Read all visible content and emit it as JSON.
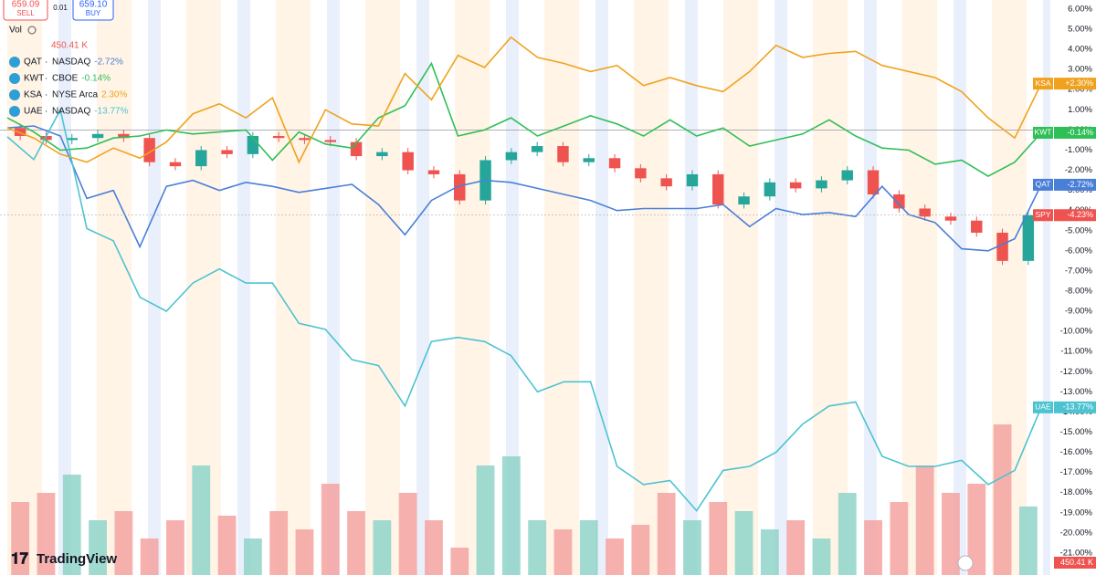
{
  "header": {
    "sell_price": "659.09",
    "sell_label": "SELL",
    "spread": "0.01",
    "buy_price": "659.10",
    "buy_label": "BUY",
    "vol_label": "Vol",
    "vol_value": "450.41 K"
  },
  "brand": "TradingView",
  "chart_data": {
    "type": "candlestick",
    "name": "SPY",
    "tag_label": "-4.23%",
    "up_color": "#26a69a",
    "down_color": "#ef5350",
    "open": [
      0.1,
      -0.3,
      -0.5,
      -0.4,
      -0.2,
      -0.4,
      -1.6,
      -1.8,
      -1.0,
      -1.2,
      -0.3,
      -0.4,
      -0.5,
      -0.6,
      -1.3,
      -1.1,
      -2.0,
      -2.2,
      -3.5,
      -1.5,
      -1.1,
      -0.8,
      -1.6,
      -1.4,
      -1.9,
      -2.4,
      -2.8,
      -2.2,
      -3.7,
      -3.3,
      -2.6,
      -2.9,
      -2.5,
      -2.0,
      -3.2,
      -3.9,
      -4.3,
      -4.5,
      -5.1,
      -6.5
    ],
    "high": [
      0.3,
      -0.1,
      -0.2,
      0.0,
      0.0,
      -0.2,
      -1.4,
      -0.8,
      -0.8,
      -0.1,
      -0.1,
      -0.2,
      -0.3,
      -0.4,
      -0.9,
      -0.9,
      -1.8,
      -2.0,
      -1.3,
      -0.9,
      -0.6,
      -0.6,
      -1.2,
      -1.2,
      -1.7,
      -2.2,
      -2.0,
      -2.0,
      -3.1,
      -2.4,
      -2.4,
      -2.3,
      -1.8,
      -1.8,
      -3.0,
      -3.7,
      -4.1,
      -4.3,
      -4.9,
      -4.0
    ],
    "low": [
      -0.5,
      -0.7,
      -0.7,
      -0.6,
      -0.6,
      -1.8,
      -2.0,
      -2.0,
      -1.4,
      -1.4,
      -0.6,
      -0.7,
      -0.8,
      -1.5,
      -1.5,
      -2.2,
      -2.4,
      -3.7,
      -3.7,
      -1.7,
      -1.3,
      -1.8,
      -1.8,
      -2.1,
      -2.6,
      -3.0,
      -3.0,
      -3.9,
      -3.9,
      -3.5,
      -3.1,
      -3.1,
      -2.7,
      -3.4,
      -4.1,
      -4.5,
      -4.7,
      -5.3,
      -6.7,
      -6.7
    ],
    "close": [
      -0.3,
      -0.5,
      -0.4,
      -0.2,
      -0.4,
      -1.6,
      -1.8,
      -1.0,
      -1.2,
      -0.3,
      -0.4,
      -0.5,
      -0.6,
      -1.3,
      -1.1,
      -2.0,
      -2.2,
      -3.5,
      -1.5,
      -1.1,
      -0.8,
      -1.6,
      -1.4,
      -1.9,
      -2.4,
      -2.8,
      -2.2,
      -3.7,
      -3.3,
      -2.6,
      -2.9,
      -2.5,
      -2.0,
      -3.2,
      -3.9,
      -4.3,
      -4.5,
      -5.1,
      -6.5,
      -4.23
    ],
    "volume": {
      "values": [
        480,
        540,
        660,
        360,
        420,
        240,
        360,
        720,
        390,
        240,
        420,
        300,
        600,
        420,
        360,
        540,
        360,
        180,
        720,
        780,
        360,
        300,
        360,
        240,
        330,
        540,
        360,
        480,
        420,
        300,
        360,
        240,
        540,
        360,
        480,
        720,
        540,
        600,
        990,
        450.41
      ],
      "label": "450.41 K",
      "up_color": "#8fd3c8",
      "down_color": "#f5a3a1"
    },
    "series": [
      {
        "name": "QAT",
        "exchange": "NASDAQ",
        "legend_label": "-2.72%",
        "tag_label": "-2.72%",
        "color": "#4a7fd8",
        "values": [
          0.1,
          0.2,
          -0.3,
          -3.4,
          -3.0,
          -5.8,
          -2.8,
          -2.5,
          -3.0,
          -2.6,
          -2.8,
          -3.1,
          -2.9,
          -2.7,
          -3.7,
          -5.2,
          -3.5,
          -2.8,
          -2.5,
          -2.6,
          -2.9,
          -3.2,
          -3.5,
          -4.0,
          -3.9,
          -3.9,
          -3.9,
          -3.7,
          -4.8,
          -3.9,
          -4.2,
          -4.1,
          -4.3,
          -2.8,
          -4.2,
          -4.6,
          -5.9,
          -6.0,
          -5.4,
          -2.72
        ]
      },
      {
        "name": "KWT",
        "exchange": "CBOE",
        "legend_label": "-0.14%",
        "tag_label": "-0.14%",
        "color": "#2fbf57",
        "values": [
          0.6,
          -0.1,
          -1.0,
          -0.9,
          -0.4,
          -0.3,
          0.0,
          -0.2,
          -0.1,
          0.0,
          -1.5,
          -0.1,
          -0.7,
          -0.9,
          0.6,
          1.2,
          3.3,
          -0.3,
          0.0,
          0.6,
          -0.3,
          0.2,
          0.7,
          0.3,
          -0.3,
          0.5,
          -0.3,
          0.1,
          -0.8,
          -0.5,
          -0.2,
          0.5,
          -0.3,
          -0.9,
          -1.0,
          -1.7,
          -1.5,
          -2.3,
          -1.6,
          -0.14
        ]
      },
      {
        "name": "KSA",
        "exchange": "NYSE Arca",
        "legend_label": "2.30%",
        "tag_label": "+2.30%",
        "color": "#f0a21e",
        "values": [
          0.1,
          -0.4,
          -1.2,
          -1.6,
          -0.9,
          -1.4,
          -0.6,
          0.8,
          1.3,
          0.6,
          1.6,
          -1.6,
          1.0,
          0.3,
          0.2,
          2.8,
          1.5,
          3.7,
          3.1,
          4.6,
          3.6,
          3.3,
          2.9,
          3.2,
          2.2,
          2.6,
          2.2,
          1.9,
          2.9,
          4.2,
          3.6,
          3.8,
          3.9,
          3.2,
          2.9,
          2.6,
          1.9,
          0.6,
          -0.4,
          2.3
        ]
      },
      {
        "name": "UAE",
        "exchange": "NASDAQ",
        "legend_label": "-13.77%",
        "tag_label": "-13.77%",
        "color": "#4cc3d1",
        "values": [
          -0.34,
          -1.47,
          1.0,
          -4.9,
          -5.5,
          -8.3,
          -9.0,
          -7.6,
          -6.9,
          -7.6,
          -7.6,
          -9.6,
          -9.9,
          -11.4,
          -11.7,
          -13.7,
          -10.5,
          -10.3,
          -10.5,
          -11.2,
          -13.0,
          -12.5,
          -12.5,
          -16.7,
          -17.6,
          -17.4,
          -18.9,
          -16.9,
          -16.7,
          -16.0,
          -14.6,
          -13.7,
          -13.5,
          -16.2,
          -16.7,
          -16.7,
          -16.4,
          -17.6,
          -16.9,
          -13.77
        ]
      }
    ],
    "ylim": [
      -22.09,
      6.45
    ],
    "yticks": [
      {
        "value": 6,
        "label": "6.00%"
      },
      {
        "value": 5,
        "label": "5.00%"
      },
      {
        "value": 4,
        "label": "4.00%"
      },
      {
        "value": 3,
        "label": "3.00%"
      },
      {
        "value": 2,
        "label": "2.00%"
      },
      {
        "value": 1,
        "label": "1.00%"
      },
      {
        "value": 0,
        "label": "0.00%"
      },
      {
        "value": -1,
        "label": "-1.00%"
      },
      {
        "value": -2,
        "label": "-2.00%"
      },
      {
        "value": -3,
        "label": "-3.00%"
      },
      {
        "value": -4,
        "label": "-4.00%"
      },
      {
        "value": -5,
        "label": "-5.00%"
      },
      {
        "value": -6,
        "label": "-6.00%"
      },
      {
        "value": -7,
        "label": "-7.00%"
      },
      {
        "value": -8,
        "label": "-8.00%"
      },
      {
        "value": -9,
        "label": "-9.00%"
      },
      {
        "value": -10,
        "label": "-10.00%"
      },
      {
        "value": -11,
        "label": "-11.00%"
      },
      {
        "value": -12,
        "label": "-12.00%"
      },
      {
        "value": -13,
        "label": "-13.00%"
      },
      {
        "value": -14,
        "label": "-14.00%"
      },
      {
        "value": -15,
        "label": "-15.00%"
      },
      {
        "value": -16,
        "label": "-16.00%"
      },
      {
        "value": -17,
        "label": "-17.00%"
      },
      {
        "value": -18,
        "label": "-18.00%"
      },
      {
        "value": -19,
        "label": "-19.00%"
      },
      {
        "value": -20,
        "label": "-20.00%"
      },
      {
        "value": -21,
        "label": "-21.00%"
      }
    ],
    "zero_line": true
  }
}
